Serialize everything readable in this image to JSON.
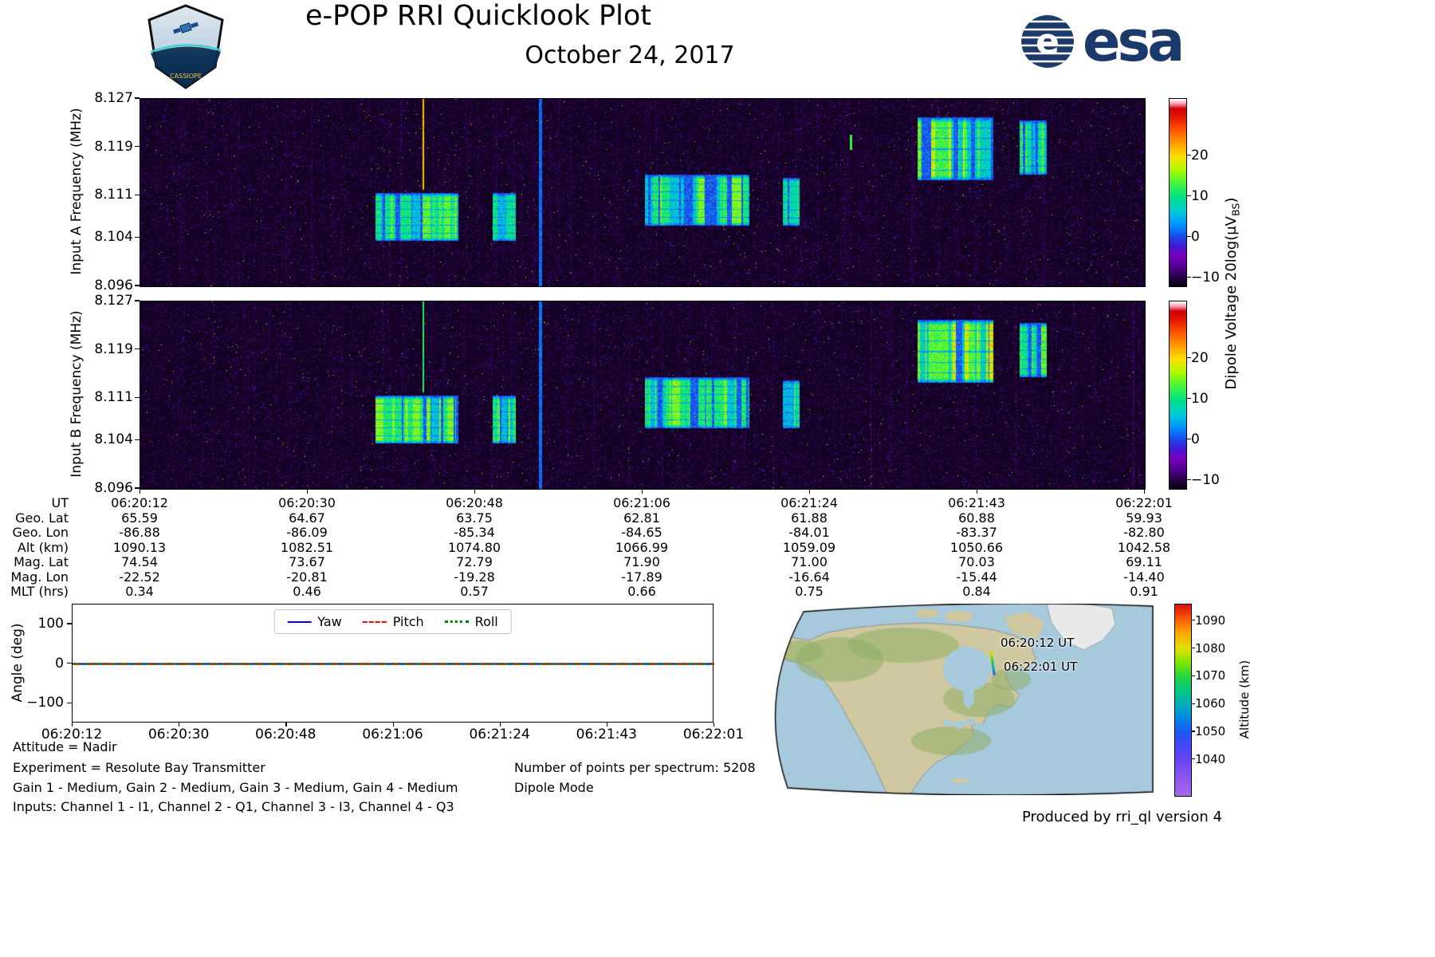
{
  "header": {
    "title": "e-POP RRI Quicklook Plot",
    "date": "October 24, 2017",
    "mission_patch_text": "CASSIOPE",
    "esa_text": "esa",
    "esa_emblem_letter": "e"
  },
  "annotations": {
    "attitude": "Attitude = Nadir",
    "experiment": "Experiment = Resolute Bay Transmitter",
    "gains": "Gain 1 - Medium, Gain 2 - Medium, Gain 3 - Medium, Gain 4 - Medium",
    "inputs": "Inputs: Channel 1 - I1, Channel 2 - Q1, Channel 3 - I3, Channel 4 - Q3",
    "points_per_spectrum": "Number of points per spectrum: 5208",
    "mode": "Dipole Mode"
  },
  "footer": {
    "credit": "Produced by rri_ql version 4"
  },
  "colors": {
    "esa_blue": "#1b3a6b",
    "yaw": "#0000ff",
    "pitch": "#ff0000",
    "roll": "#008000",
    "ocean": "#a7c9dc",
    "land": "#cfc8a0",
    "land_green": "#8fae66",
    "greenland": "#e7eae9"
  },
  "chart_data": {
    "spectrograms": {
      "type": "heatmap",
      "time_start_ut": "06:20:12",
      "time_end_ut": "06:22:01",
      "freq_range_mhz": [
        8.096,
        8.127
      ],
      "freq_ticks": [
        "8.127",
        "8.119",
        "8.111",
        "8.104",
        "8.096"
      ],
      "colorbar": {
        "label_main": "Dipole Voltage 20log(μV",
        "label_sub": "BS",
        "label_close": ")",
        "ticks": [
          "20",
          "10",
          "0",
          "−10"
        ],
        "tick_values": [
          20,
          10,
          0,
          -10
        ],
        "value_range": [
          -12,
          34
        ]
      },
      "panels": [
        {
          "id": "A",
          "ylabel": "Input A Frequency (MHz)",
          "seed": 1337,
          "patches": [
            {
              "t": [
                0.234,
                0.317
              ],
              "f": [
                8.1035,
                8.1115
              ],
              "amp": 11,
              "ut": [
                "06:20:38",
                "06:20:47"
              ]
            },
            {
              "t": [
                0.351,
                0.374
              ],
              "f": [
                8.1035,
                8.1115
              ],
              "amp": 10,
              "ut": [
                "06:20:50",
                "06:20:53"
              ]
            },
            {
              "t": [
                0.502,
                0.606
              ],
              "f": [
                8.106,
                8.1145
              ],
              "amp": 12,
              "ut": [
                "06:21:07",
                "06:21:18"
              ]
            },
            {
              "t": [
                0.64,
                0.656
              ],
              "f": [
                8.106,
                8.114
              ],
              "amp": 9,
              "ut": [
                "06:21:22",
                "06:21:24"
              ]
            },
            {
              "t": [
                0.774,
                0.849
              ],
              "f": [
                8.1135,
                8.124
              ],
              "amp": 14,
              "ut": [
                "06:21:36",
                "06:21:45"
              ]
            },
            {
              "t": [
                0.875,
                0.902
              ],
              "f": [
                8.1145,
                8.1235
              ],
              "amp": 10,
              "ut": [
                "06:21:47",
                "06:21:50"
              ]
            }
          ],
          "vlines": [
            {
              "t": 0.281,
              "f": [
                8.112,
                8.127
              ],
              "amp": 21,
              "w": 2
            },
            {
              "t": 0.397,
              "f": [
                8.096,
                8.127
              ],
              "amp": 1.5,
              "w": 4
            },
            {
              "t": 0.706,
              "f": [
                8.1185,
                8.121
              ],
              "amp": 13,
              "w": 3
            }
          ]
        },
        {
          "id": "B",
          "ylabel": "Input B Frequency (MHz)",
          "seed": 7117,
          "patches": [
            {
              "t": [
                0.234,
                0.317
              ],
              "f": [
                8.1035,
                8.1115
              ],
              "amp": 12,
              "ut": [
                "06:20:38",
                "06:20:47"
              ]
            },
            {
              "t": [
                0.351,
                0.374
              ],
              "f": [
                8.1035,
                8.1115
              ],
              "amp": 11,
              "ut": [
                "06:20:50",
                "06:20:53"
              ]
            },
            {
              "t": [
                0.502,
                0.606
              ],
              "f": [
                8.106,
                8.1145
              ],
              "amp": 12,
              "ut": [
                "06:21:07",
                "06:21:18"
              ]
            },
            {
              "t": [
                0.64,
                0.656
              ],
              "f": [
                8.106,
                8.114
              ],
              "amp": 10,
              "ut": [
                "06:21:22",
                "06:21:24"
              ]
            },
            {
              "t": [
                0.774,
                0.849
              ],
              "f": [
                8.1135,
                8.124
              ],
              "amp": 15,
              "ut": [
                "06:21:36",
                "06:21:45"
              ]
            },
            {
              "t": [
                0.875,
                0.902
              ],
              "f": [
                8.1145,
                8.1235
              ],
              "amp": 11,
              "ut": [
                "06:21:47",
                "06:21:50"
              ]
            }
          ],
          "vlines": [
            {
              "t": 0.281,
              "f": [
                8.112,
                8.127
              ],
              "amp": 12,
              "w": 2
            },
            {
              "t": 0.397,
              "f": [
                8.096,
                8.127
              ],
              "amp": 1.5,
              "w": 4
            }
          ]
        }
      ]
    },
    "ephemeris_table": {
      "type": "table",
      "rows": [
        {
          "label": "UT",
          "values": [
            "06:20:12",
            "06:20:30",
            "06:20:48",
            "06:21:06",
            "06:21:24",
            "06:21:43",
            "06:22:01"
          ]
        },
        {
          "label": "Geo. Lat",
          "values": [
            "65.59",
            "64.67",
            "63.75",
            "62.81",
            "61.88",
            "60.88",
            "59.93"
          ]
        },
        {
          "label": "Geo. Lon",
          "values": [
            "-86.88",
            "-86.09",
            "-85.34",
            "-84.65",
            "-84.01",
            "-83.37",
            "-82.80"
          ]
        },
        {
          "label": "Alt (km)",
          "values": [
            "1090.13",
            "1082.51",
            "1074.80",
            "1066.99",
            "1059.09",
            "1050.66",
            "1042.58"
          ]
        },
        {
          "label": "Mag. Lat",
          "values": [
            "74.54",
            "73.67",
            "72.79",
            "71.90",
            "71.00",
            "70.03",
            "69.11"
          ]
        },
        {
          "label": "Mag. Lon",
          "values": [
            "-22.52",
            "-20.81",
            "-19.28",
            "-17.89",
            "-16.64",
            "-15.44",
            "-14.40"
          ]
        },
        {
          "label": "MLT (hrs)",
          "values": [
            "0.34",
            "0.46",
            "0.57",
            "0.66",
            "0.75",
            "0.84",
            "0.91"
          ]
        }
      ]
    },
    "attitude": {
      "type": "line",
      "ylabel": "Angle (deg)",
      "ylim": [
        -150,
        150
      ],
      "yticks": [
        "100",
        "0",
        "−100"
      ],
      "ytick_values": [
        100,
        0,
        -100
      ],
      "xticks": [
        "06:20:12",
        "06:20:30",
        "06:20:48",
        "06:21:06",
        "06:21:24",
        "06:21:43",
        "06:22:01"
      ],
      "series": [
        {
          "name": "Yaw",
          "style": "solid",
          "color": "#0000ff",
          "value_deg": 0
        },
        {
          "name": "Pitch",
          "style": "dashed",
          "color": "#ff0000",
          "value_deg": 0
        },
        {
          "name": "Roll",
          "style": "dotted",
          "color": "#008000",
          "value_deg": 0
        }
      ]
    },
    "ground_track": {
      "type": "track",
      "start_label": "06:20:12 UT",
      "end_label": "06:22:01 UT",
      "altitude_range_km": [
        1042.58,
        1090.13
      ],
      "colorbar": {
        "label": "Altitude (km)",
        "ticks": [
          "1090",
          "1080",
          "1070",
          "1060",
          "1050",
          "1040"
        ],
        "tick_values": [
          1090,
          1080,
          1070,
          1060,
          1050,
          1040
        ],
        "value_range": [
          1027,
          1096
        ]
      }
    }
  }
}
